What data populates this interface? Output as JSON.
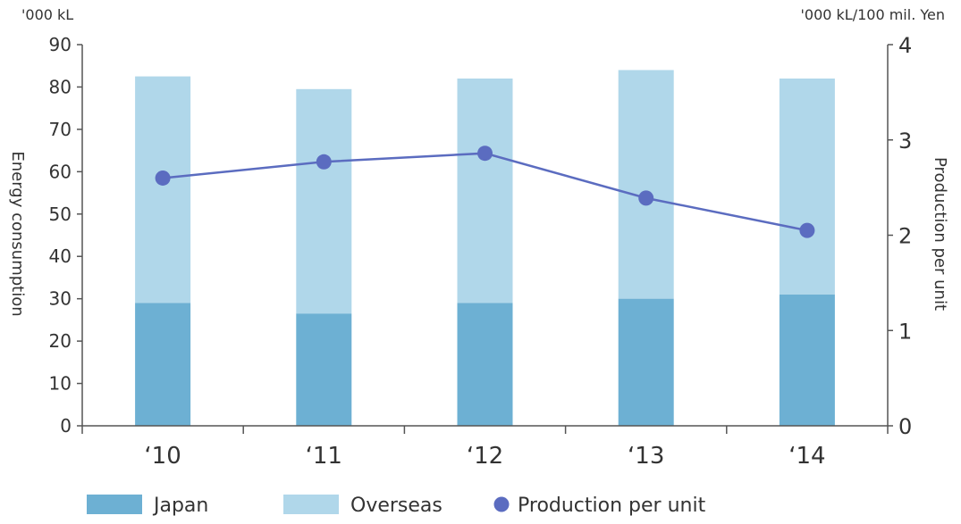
{
  "colors": {
    "japan": "#6db0d3",
    "overseas": "#b0d7ea",
    "line": "#5b6cc0",
    "axis": "#555555"
  },
  "chart_data": {
    "type": "bar",
    "stacked": true,
    "categories": [
      "‘10",
      "‘11",
      "‘12",
      "‘13",
      "‘14"
    ],
    "series": [
      {
        "name": "Japan",
        "type": "bar",
        "axis": "left",
        "values": [
          29,
          26.5,
          29,
          30,
          31
        ]
      },
      {
        "name": "Overseas",
        "type": "bar",
        "axis": "left",
        "values": [
          53.5,
          53,
          53,
          54,
          51
        ]
      },
      {
        "name": "Production per unit",
        "type": "line",
        "axis": "right",
        "values": [
          2.6,
          2.77,
          2.86,
          2.39,
          2.05
        ]
      }
    ],
    "left_axis": {
      "label": "Energy consumption",
      "unit": "'000 kL",
      "ylim": [
        0,
        90
      ],
      "ticks": [
        "0",
        "10",
        "20",
        "30",
        "40",
        "50",
        "60",
        "70",
        "80",
        "90"
      ]
    },
    "right_axis": {
      "label": "Production per unit",
      "unit": "'000 kL/100 mil. Yen",
      "ylim": [
        0,
        4
      ],
      "ticks": [
        "0",
        "1",
        "2",
        "3",
        "4"
      ]
    },
    "grid": false,
    "legend": {
      "position": "bottom-left",
      "items": [
        {
          "label": "Japan",
          "marker": "square"
        },
        {
          "label": "Overseas",
          "marker": "square"
        },
        {
          "label": "Production per unit",
          "marker": "circle"
        }
      ]
    }
  }
}
